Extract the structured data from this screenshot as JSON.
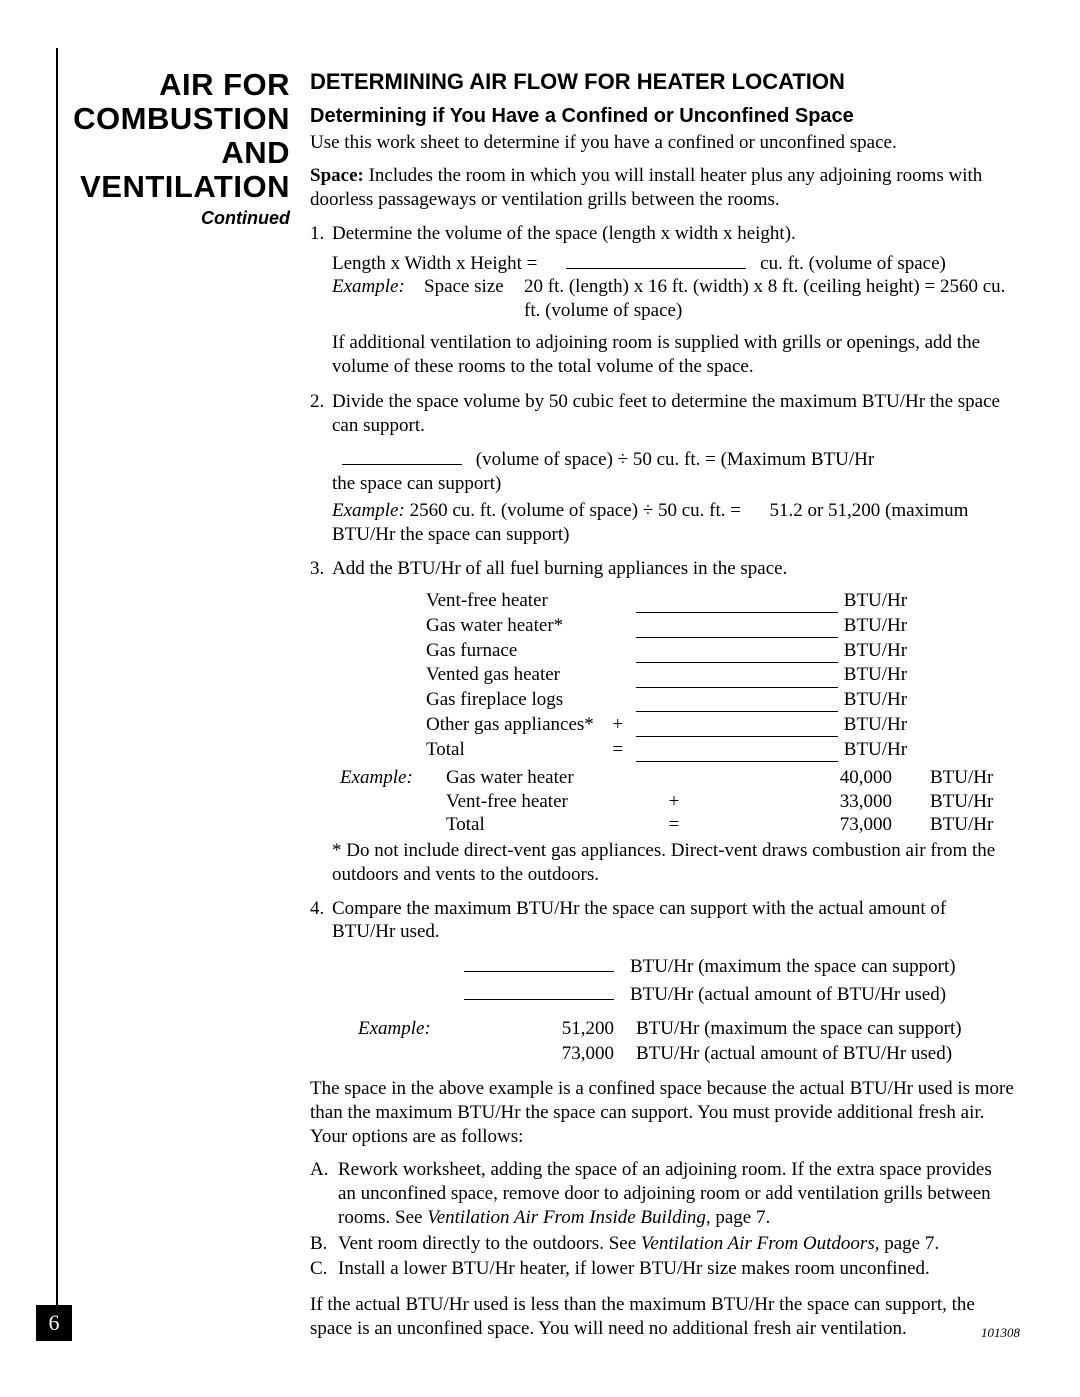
{
  "sidebar": {
    "title_lines": [
      "AIR FOR",
      "COMBUSTION",
      "AND",
      "VENTILATION"
    ],
    "continued": "Continued"
  },
  "headings": {
    "h1": "DETERMINING AIR FLOW FOR HEATER LOCATION",
    "h2": "Determining if You Have a Confined or Unconfined Space"
  },
  "intro": "Use this work sheet to determine if you have a confined or unconfined space.",
  "space_label": "Space:",
  "space_text": " Includes the room in which you will install heater plus any adjoining rooms with doorless passageways or ventilation grills between the rooms.",
  "step1": {
    "num": "1.",
    "text": "Determine the volume of the space (length x width x height).",
    "formula_left": "Length x Width x Height =",
    "formula_right": "cu. ft. (volume of space)",
    "example_label": "Example:",
    "example_a": "Space size",
    "example_b": "20 ft. (length) x 16 ft. (width) x 8 ft. (ceiling height) = 2560 cu. ft. (volume of space)",
    "note": "If additional ventilation to adjoining room is supplied with grills or openings, add the volume of these rooms to the total volume of the space."
  },
  "step2": {
    "num": "2.",
    "text": "Divide the space volume by 50 cubic feet to determine the maximum BTU/Hr the space can support.",
    "formula_right": "(volume of space) ÷ 50 cu. ft. = (Maximum BTU/Hr",
    "formula_tail": "the space can support)",
    "example_label": "Example:",
    "example_a": " 2560 cu. ft. (volume of space) ÷ 50 cu. ft. =",
    "example_b": "51.2 or 51,200 (maximum BTU/Hr the space can support)"
  },
  "step3": {
    "num": "3.",
    "text": "Add the BTU/Hr of all fuel burning appliances in the space.",
    "appliances": [
      {
        "name": "Vent-free heater",
        "op": "",
        "blank": true,
        "unit": "BTU/Hr"
      },
      {
        "name": "Gas water heater*",
        "op": "",
        "blank": true,
        "unit": "BTU/Hr"
      },
      {
        "name": "Gas furnace",
        "op": "",
        "blank": true,
        "unit": "BTU/Hr"
      },
      {
        "name": "Vented gas heater",
        "op": "",
        "blank": true,
        "unit": "BTU/Hr"
      },
      {
        "name": "Gas fireplace logs",
        "op": "",
        "blank": true,
        "unit": "BTU/Hr"
      },
      {
        "name": "Other gas appliances*",
        "op": "+",
        "blank": true,
        "unit": "BTU/Hr"
      },
      {
        "name": "Total",
        "op": "=",
        "blank": true,
        "unit": "BTU/Hr"
      }
    ],
    "example_label": "Example:",
    "example_rows": [
      {
        "name": "Gas water heater",
        "op": "",
        "val": "40,000",
        "unit": "BTU/Hr"
      },
      {
        "name": "Vent-free heater",
        "op": "+",
        "val": "33,000",
        "unit": "BTU/Hr"
      },
      {
        "name": "Total",
        "op": "=",
        "val": "73,000",
        "unit": "BTU/Hr"
      }
    ],
    "footnote": "* Do not include direct-vent gas appliances. Direct-vent draws combustion air from the outdoors and vents to the outdoors."
  },
  "step4": {
    "num": "4.",
    "text": "Compare the maximum BTU/Hr the space can support with the actual amount of BTU/Hr used.",
    "rows_blank": [
      {
        "desc": "BTU/Hr (maximum the space can support)"
      },
      {
        "desc": "BTU/Hr (actual amount of BTU/Hr used)"
      }
    ],
    "example_label": "Example:",
    "example_rows": [
      {
        "val": "51,200",
        "desc": "BTU/Hr (maximum the space can support)"
      },
      {
        "val": "73,000",
        "desc": "BTU/Hr (actual amount of BTU/Hr used)"
      }
    ]
  },
  "conclusion1": "The space in the above example is a confined space because the actual BTU/Hr used is more than the maximum BTU/Hr the space can support. You must provide additional fresh air. Your options are as follows:",
  "options": [
    {
      "n": "A.",
      "pre": "Rework worksheet, adding the space of an adjoining room. If the extra space provides an unconfined space, remove door to adjoining room or add ventilation grills between rooms. See ",
      "ital": "Ventilation Air From Inside Building,",
      "post": " page 7."
    },
    {
      "n": "B.",
      "pre": "Vent room directly to the outdoors. See ",
      "ital": "Ventilation Air From Outdoors,",
      "post": " page 7."
    },
    {
      "n": "C.",
      "pre": "Install a lower BTU/Hr heater, if lower BTU/Hr size makes room unconfined.",
      "ital": "",
      "post": ""
    }
  ],
  "conclusion2": "If the actual BTU/Hr used is less than the maximum BTU/Hr the space can support, the space is an unconfined space. You will need no additional fresh air ventilation.",
  "page_number": "6",
  "doc_number": "101308"
}
